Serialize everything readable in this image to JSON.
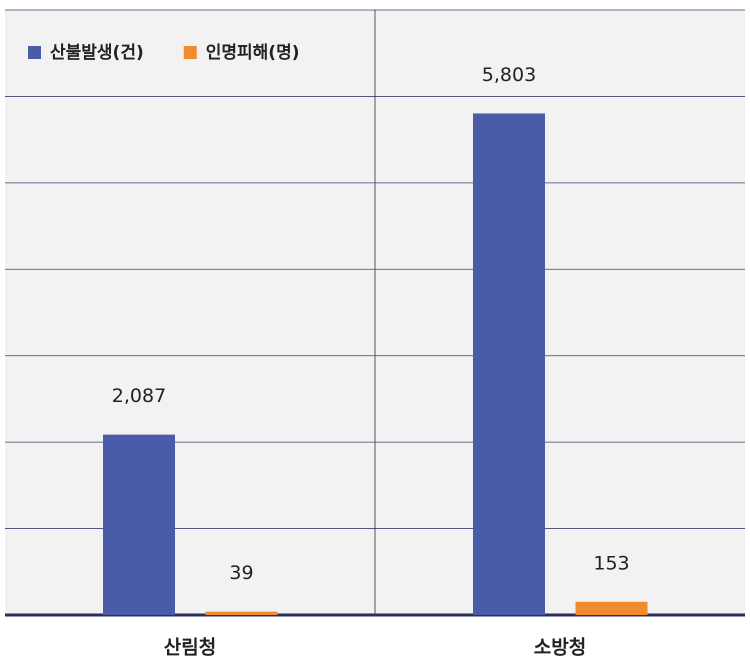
{
  "chart_data": {
    "type": "bar",
    "categories": [
      "산림청",
      "소방청"
    ],
    "series": [
      {
        "name": "산불발생(건)",
        "color": "#4a5ba8",
        "values": [
          2087,
          5803
        ],
        "value_labels": [
          "2,087",
          "5,803"
        ]
      },
      {
        "name": "인명피해(명)",
        "color": "#f28a30",
        "values": [
          39,
          153
        ],
        "value_labels": [
          "39",
          "153"
        ]
      }
    ],
    "ylim": [
      0,
      7000
    ],
    "yticks": [
      0,
      1000,
      2000,
      3000,
      4000,
      5000,
      6000,
      7000
    ],
    "grid": true
  }
}
